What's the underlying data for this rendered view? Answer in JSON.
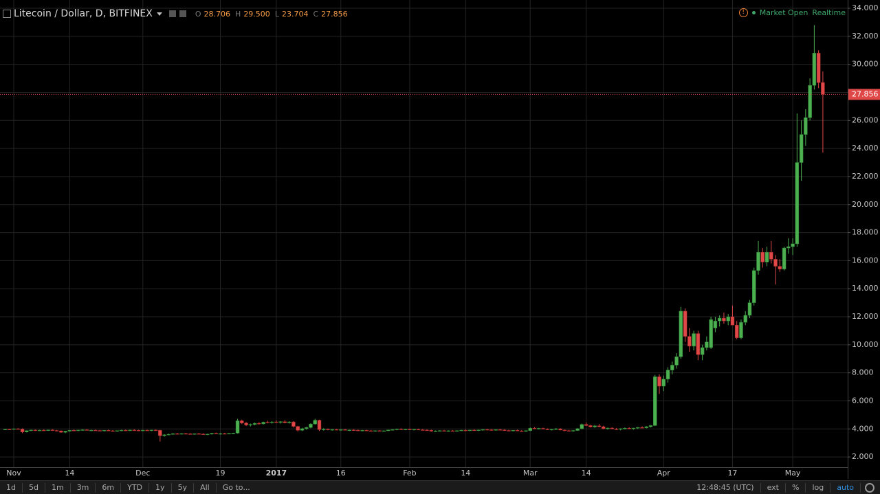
{
  "chart_data": {
    "type": "candlestick",
    "title": "Litecoin / Dollar, D, BITFINEX",
    "legend_labels": [
      "O",
      "H",
      "L",
      "C"
    ],
    "legend_values": [
      "28.706",
      "29.500",
      "23.704",
      "27.856"
    ],
    "status": [
      "Market Open",
      "Realtime"
    ],
    "up_color": "#4caf50",
    "down_color": "#e04848",
    "grid": true,
    "ylim": [
      1.27,
      34.59
    ],
    "yticks": [
      {
        "value": 2,
        "label": "2.000"
      },
      {
        "value": 4,
        "label": "4.000"
      },
      {
        "value": 6,
        "label": "6.000"
      },
      {
        "value": 8,
        "label": "8.000"
      },
      {
        "value": 10,
        "label": "10.000"
      },
      {
        "value": 12,
        "label": "12.000"
      },
      {
        "value": 14,
        "label": "14.000"
      },
      {
        "value": 16,
        "label": "16.000"
      },
      {
        "value": 18,
        "label": "18.000"
      },
      {
        "value": 20,
        "label": "20.000"
      },
      {
        "value": 22,
        "label": "22.000"
      },
      {
        "value": 24,
        "label": "24.000"
      },
      {
        "value": 26,
        "label": "26.000"
      },
      {
        "value": 28,
        "label": "28.000"
      },
      {
        "value": 30,
        "label": "30.000"
      },
      {
        "value": 32,
        "label": "32.000"
      },
      {
        "value": 34,
        "label": "34.000"
      }
    ],
    "categories": [
      null,
      null,
      "Nov",
      null,
      null,
      null,
      null,
      null,
      null,
      null,
      null,
      null,
      null,
      null,
      null,
      "14",
      null,
      null,
      null,
      null,
      null,
      null,
      null,
      null,
      null,
      null,
      null,
      null,
      null,
      null,
      null,
      null,
      "Dec",
      null,
      null,
      null,
      null,
      null,
      null,
      null,
      null,
      null,
      null,
      null,
      null,
      null,
      null,
      null,
      null,
      null,
      "19",
      null,
      null,
      null,
      null,
      null,
      null,
      null,
      null,
      null,
      null,
      null,
      null,
      "2017",
      null,
      null,
      null,
      null,
      null,
      null,
      null,
      null,
      null,
      null,
      null,
      null,
      null,
      null,
      "16",
      null,
      null,
      null,
      null,
      null,
      null,
      null,
      null,
      null,
      null,
      null,
      null,
      null,
      null,
      null,
      "Feb",
      null,
      null,
      null,
      null,
      null,
      null,
      null,
      null,
      null,
      null,
      null,
      null,
      "14",
      null,
      null,
      null,
      null,
      null,
      null,
      null,
      null,
      null,
      null,
      null,
      null,
      null,
      null,
      "Mar",
      null,
      null,
      null,
      null,
      null,
      null,
      null,
      null,
      null,
      null,
      null,
      null,
      "14",
      null,
      null,
      null,
      null,
      null,
      null,
      null,
      null,
      null,
      null,
      null,
      null,
      null,
      null,
      null,
      null,
      null,
      "Apr",
      null,
      null,
      null,
      null,
      null,
      null,
      null,
      null,
      null,
      null,
      null,
      null,
      null,
      null,
      null,
      "17",
      null,
      null,
      null,
      null,
      null,
      null,
      null,
      null,
      null,
      null,
      null,
      null,
      null,
      "May",
      null,
      null,
      null,
      null,
      null,
      null,
      null
    ],
    "candles": [
      [
        3.96,
        4.0,
        3.92,
        3.98
      ],
      [
        3.98,
        4.02,
        3.94,
        3.97
      ],
      [
        3.97,
        4.03,
        3.95,
        4.01
      ],
      [
        4.01,
        4.05,
        3.96,
        3.99
      ],
      [
        3.99,
        4.04,
        3.7,
        3.78
      ],
      [
        3.78,
        3.9,
        3.75,
        3.88
      ],
      [
        3.88,
        3.95,
        3.84,
        3.92
      ],
      [
        3.92,
        3.96,
        3.86,
        3.89
      ],
      [
        3.89,
        3.94,
        3.85,
        3.91
      ],
      [
        3.91,
        3.97,
        3.87,
        3.9
      ],
      [
        3.9,
        3.95,
        3.86,
        3.93
      ],
      [
        3.93,
        3.98,
        3.88,
        3.89
      ],
      [
        3.89,
        3.93,
        3.82,
        3.86
      ],
      [
        3.86,
        3.9,
        3.72,
        3.76
      ],
      [
        3.76,
        3.86,
        3.7,
        3.84
      ],
      [
        3.84,
        3.92,
        3.8,
        3.9
      ],
      [
        3.9,
        3.96,
        3.86,
        3.88
      ],
      [
        3.88,
        3.94,
        3.84,
        3.92
      ],
      [
        3.92,
        3.97,
        3.88,
        3.94
      ],
      [
        3.94,
        3.98,
        3.89,
        3.9
      ],
      [
        3.9,
        3.95,
        3.85,
        3.91
      ],
      [
        3.91,
        3.96,
        3.87,
        3.89
      ],
      [
        3.89,
        3.93,
        3.83,
        3.86
      ],
      [
        3.86,
        3.92,
        3.82,
        3.9
      ],
      [
        3.9,
        3.95,
        3.86,
        3.87
      ],
      [
        3.87,
        3.91,
        3.8,
        3.83
      ],
      [
        3.83,
        3.9,
        3.8,
        3.88
      ],
      [
        3.88,
        3.94,
        3.84,
        3.91
      ],
      [
        3.91,
        3.96,
        3.86,
        3.89
      ],
      [
        3.89,
        3.95,
        3.85,
        3.92
      ],
      [
        3.92,
        3.97,
        3.88,
        3.9
      ],
      [
        3.9,
        3.94,
        3.85,
        3.88
      ],
      [
        3.88,
        3.93,
        3.84,
        3.91
      ],
      [
        3.91,
        3.95,
        3.87,
        3.89
      ],
      [
        3.89,
        3.94,
        3.85,
        3.92
      ],
      [
        3.92,
        3.96,
        3.86,
        3.9
      ],
      [
        3.9,
        3.94,
        3.1,
        3.52
      ],
      [
        3.52,
        3.62,
        3.45,
        3.58
      ],
      [
        3.58,
        3.66,
        3.54,
        3.62
      ],
      [
        3.62,
        3.7,
        3.58,
        3.66
      ],
      [
        3.66,
        3.72,
        3.6,
        3.64
      ],
      [
        3.64,
        3.7,
        3.6,
        3.67
      ],
      [
        3.67,
        3.72,
        3.62,
        3.65
      ],
      [
        3.65,
        3.7,
        3.6,
        3.63
      ],
      [
        3.63,
        3.68,
        3.58,
        3.66
      ],
      [
        3.66,
        3.71,
        3.61,
        3.64
      ],
      [
        3.64,
        3.69,
        3.58,
        3.6
      ],
      [
        3.6,
        3.66,
        3.56,
        3.63
      ],
      [
        3.63,
        3.72,
        3.6,
        3.69
      ],
      [
        3.69,
        3.74,
        3.62,
        3.65
      ],
      [
        3.65,
        3.7,
        3.6,
        3.67
      ],
      [
        3.67,
        3.72,
        3.63,
        3.66
      ],
      [
        3.66,
        3.71,
        3.62,
        3.68
      ],
      [
        3.68,
        3.73,
        3.64,
        3.7
      ],
      [
        3.7,
        4.72,
        3.66,
        4.58
      ],
      [
        4.58,
        4.66,
        4.35,
        4.42
      ],
      [
        4.42,
        4.5,
        4.2,
        4.28
      ],
      [
        4.28,
        4.38,
        4.18,
        4.32
      ],
      [
        4.32,
        4.45,
        4.25,
        4.4
      ],
      [
        4.4,
        4.48,
        4.3,
        4.36
      ],
      [
        4.36,
        4.52,
        4.32,
        4.48
      ],
      [
        4.48,
        4.58,
        4.4,
        4.45
      ],
      [
        4.45,
        4.55,
        4.38,
        4.5
      ],
      [
        4.5,
        4.6,
        4.42,
        4.46
      ],
      [
        4.46,
        4.56,
        4.38,
        4.52
      ],
      [
        4.52,
        4.62,
        4.4,
        4.44
      ],
      [
        4.44,
        4.55,
        4.38,
        4.5
      ],
      [
        4.5,
        4.56,
        4.1,
        4.18
      ],
      [
        4.18,
        4.22,
        3.82,
        3.9
      ],
      [
        3.9,
        4.08,
        3.85,
        4.02
      ],
      [
        4.02,
        4.15,
        3.95,
        4.1
      ],
      [
        4.1,
        4.4,
        4.05,
        4.35
      ],
      [
        4.35,
        4.72,
        4.3,
        4.62
      ],
      [
        4.62,
        4.66,
        3.85,
        3.95
      ],
      [
        3.95,
        4.05,
        3.88,
        3.98
      ],
      [
        3.98,
        4.03,
        3.9,
        3.94
      ],
      [
        3.94,
        3.99,
        3.88,
        3.96
      ],
      [
        3.96,
        4.0,
        3.9,
        3.92
      ],
      [
        3.92,
        3.97,
        3.87,
        3.95
      ],
      [
        3.95,
        3.99,
        3.89,
        3.9
      ],
      [
        3.9,
        3.95,
        3.85,
        3.93
      ],
      [
        3.93,
        3.98,
        3.88,
        3.91
      ],
      [
        3.91,
        3.96,
        3.86,
        3.88
      ],
      [
        3.88,
        3.93,
        3.83,
        3.9
      ],
      [
        3.9,
        3.94,
        3.85,
        3.87
      ],
      [
        3.87,
        3.92,
        3.82,
        3.84
      ],
      [
        3.84,
        3.9,
        3.8,
        3.88
      ],
      [
        3.88,
        3.92,
        3.84,
        3.85
      ],
      [
        3.85,
        3.9,
        3.8,
        3.87
      ],
      [
        3.87,
        3.95,
        3.84,
        3.93
      ],
      [
        3.93,
        3.98,
        3.88,
        3.95
      ],
      [
        3.95,
        4.02,
        3.91,
        3.99
      ],
      [
        3.99,
        4.04,
        3.93,
        3.96
      ],
      [
        3.96,
        4.01,
        3.91,
        3.98
      ],
      [
        3.98,
        4.03,
        3.93,
        3.95
      ],
      [
        3.95,
        4.0,
        3.9,
        3.97
      ],
      [
        3.97,
        4.02,
        3.92,
        3.94
      ],
      [
        3.94,
        3.99,
        3.89,
        3.92
      ],
      [
        3.92,
        3.97,
        3.87,
        3.9
      ],
      [
        3.9,
        3.95,
        3.8,
        3.84
      ],
      [
        3.84,
        3.89,
        3.79,
        3.86
      ],
      [
        3.86,
        3.91,
        3.81,
        3.88
      ],
      [
        3.88,
        3.93,
        3.83,
        3.85
      ],
      [
        3.85,
        3.9,
        3.8,
        3.87
      ],
      [
        3.87,
        3.92,
        3.82,
        3.84
      ],
      [
        3.84,
        3.9,
        3.8,
        3.88
      ],
      [
        3.88,
        3.94,
        3.84,
        3.91
      ],
      [
        3.91,
        3.96,
        3.86,
        3.89
      ],
      [
        3.89,
        3.94,
        3.84,
        3.92
      ],
      [
        3.92,
        3.97,
        3.87,
        3.9
      ],
      [
        3.9,
        3.95,
        3.85,
        3.93
      ],
      [
        3.93,
        3.98,
        3.88,
        3.96
      ],
      [
        3.96,
        4.01,
        3.91,
        3.94
      ],
      [
        3.94,
        3.99,
        3.89,
        3.92
      ],
      [
        3.92,
        3.97,
        3.87,
        3.95
      ],
      [
        3.95,
        4.0,
        3.9,
        3.93
      ],
      [
        3.93,
        3.98,
        3.86,
        3.89
      ],
      [
        3.89,
        3.94,
        3.84,
        3.87
      ],
      [
        3.87,
        3.92,
        3.82,
        3.9
      ],
      [
        3.9,
        3.95,
        3.85,
        3.86
      ],
      [
        3.86,
        3.91,
        3.8,
        3.83
      ],
      [
        3.83,
        3.9,
        3.79,
        3.88
      ],
      [
        3.88,
        4.1,
        3.85,
        4.05
      ],
      [
        4.05,
        4.12,
        3.98,
        4.02
      ],
      [
        4.02,
        4.08,
        3.96,
        4.04
      ],
      [
        4.04,
        4.09,
        3.97,
        3.99
      ],
      [
        3.99,
        4.04,
        3.92,
        3.95
      ],
      [
        3.95,
        4.0,
        3.89,
        3.97
      ],
      [
        3.97,
        4.06,
        3.92,
        4.01
      ],
      [
        4.01,
        4.05,
        3.9,
        3.92
      ],
      [
        3.92,
        3.96,
        3.84,
        3.88
      ],
      [
        3.88,
        3.93,
        3.82,
        3.85
      ],
      [
        3.85,
        3.92,
        3.8,
        3.89
      ],
      [
        3.89,
        4.05,
        3.86,
        4.02
      ],
      [
        4.02,
        4.38,
        3.98,
        4.32
      ],
      [
        4.32,
        4.45,
        4.2,
        4.24
      ],
      [
        4.24,
        4.3,
        4.1,
        4.14
      ],
      [
        4.14,
        4.28,
        4.08,
        4.22
      ],
      [
        4.22,
        4.35,
        4.12,
        4.16
      ],
      [
        4.16,
        4.22,
        3.98,
        4.02
      ],
      [
        4.02,
        4.1,
        3.95,
        4.06
      ],
      [
        4.06,
        4.12,
        3.98,
        4.0
      ],
      [
        4.0,
        4.06,
        3.92,
        3.97
      ],
      [
        3.97,
        4.04,
        3.9,
        4.02
      ],
      [
        4.02,
        4.1,
        3.96,
        4.05
      ],
      [
        4.05,
        4.11,
        3.98,
        4.01
      ],
      [
        4.01,
        4.08,
        3.95,
        4.06
      ],
      [
        4.06,
        4.14,
        4.0,
        4.1
      ],
      [
        4.1,
        4.18,
        4.04,
        4.08
      ],
      [
        4.08,
        4.2,
        4.04,
        4.16
      ],
      [
        4.16,
        4.28,
        4.1,
        4.24
      ],
      [
        4.24,
        7.85,
        4.2,
        7.72
      ],
      [
        7.72,
        7.9,
        6.5,
        7.05
      ],
      [
        7.05,
        7.8,
        6.7,
        7.55
      ],
      [
        7.55,
        8.4,
        7.3,
        8.2
      ],
      [
        8.2,
        8.8,
        7.9,
        8.55
      ],
      [
        8.55,
        9.4,
        8.3,
        9.15
      ],
      [
        9.15,
        12.7,
        9.0,
        12.4
      ],
      [
        12.4,
        12.6,
        10.2,
        10.6
      ],
      [
        10.6,
        11.2,
        9.5,
        9.9
      ],
      [
        9.9,
        11.0,
        9.6,
        10.8
      ],
      [
        10.8,
        11.0,
        8.9,
        9.3
      ],
      [
        9.3,
        10.0,
        8.9,
        9.8
      ],
      [
        9.8,
        10.6,
        9.6,
        10.2
      ],
      [
        9.8,
        12.0,
        9.7,
        11.8
      ],
      [
        11.2,
        12.0,
        10.9,
        11.7
      ],
      [
        11.7,
        12.1,
        11.3,
        11.9
      ],
      [
        11.9,
        12.3,
        11.5,
        11.7
      ],
      [
        11.7,
        12.2,
        11.4,
        12.0
      ],
      [
        12.0,
        12.8,
        11.5,
        11.4
      ],
      [
        11.4,
        11.7,
        10.4,
        10.5
      ],
      [
        10.5,
        11.8,
        10.4,
        11.6
      ],
      [
        11.6,
        12.4,
        11.4,
        12.1
      ],
      [
        12.1,
        13.2,
        11.9,
        13.0
      ],
      [
        13.0,
        15.5,
        12.8,
        15.3
      ],
      [
        15.3,
        17.4,
        15.0,
        16.6
      ],
      [
        16.6,
        16.9,
        15.5,
        15.9
      ],
      [
        15.9,
        17.0,
        15.6,
        16.6
      ],
      [
        16.6,
        17.4,
        15.8,
        16.1
      ],
      [
        16.1,
        16.4,
        14.3,
        15.6
      ],
      [
        15.6,
        16.1,
        15.2,
        15.4
      ],
      [
        15.4,
        17.0,
        15.3,
        16.9
      ],
      [
        16.9,
        17.6,
        16.5,
        17.0
      ],
      [
        17.0,
        17.6,
        16.4,
        17.2
      ],
      [
        17.2,
        26.5,
        17.0,
        23.0
      ],
      [
        23.0,
        26.0,
        21.7,
        25.0
      ],
      [
        25.0,
        26.8,
        24.2,
        26.2
      ],
      [
        26.2,
        29.0,
        26.0,
        28.5
      ],
      [
        28.5,
        32.8,
        28.2,
        30.8
      ],
      [
        30.8,
        31.0,
        28.3,
        28.7
      ],
      [
        28.706,
        29.5,
        23.704,
        27.856
      ]
    ]
  },
  "toolbar": {
    "ranges": [
      "1d",
      "5d",
      "1m",
      "3m",
      "6m",
      "YTD",
      "1y",
      "5y",
      "All"
    ],
    "goto": "Go to...",
    "time": "12:48:45 (UTC)",
    "options": [
      "ext",
      "%",
      "log"
    ],
    "auto": "auto"
  }
}
